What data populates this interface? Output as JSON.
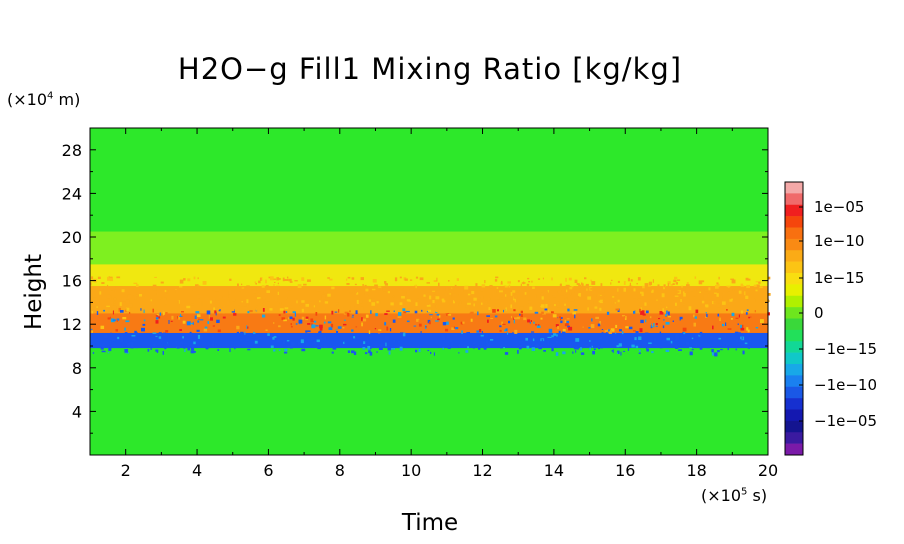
{
  "chart_data": {
    "type": "heatmap",
    "title": "H2O−g Fill1 Mixing Ratio [kg/kg]",
    "xlabel": "Time",
    "ylabel": "Height",
    "x_unit": {
      "prefix": "(×10",
      "exp": "5",
      "suffix": " s)"
    },
    "y_unit": {
      "prefix": "(×10",
      "exp": "4",
      "suffix": " m)"
    },
    "xlim": [
      1,
      20
    ],
    "ylim": [
      0,
      30
    ],
    "x_ticks": [
      2,
      4,
      6,
      8,
      10,
      12,
      14,
      16,
      18,
      20
    ],
    "y_ticks": [
      4,
      8,
      12,
      16,
      20,
      24,
      28
    ],
    "colorbar": {
      "labels": [
        "1e−05",
        "1e−10",
        "1e−15",
        "0",
        "−1e−15",
        "−1e−10",
        "−1e−05"
      ],
      "colors": [
        "#f4a9a8",
        "#f06a6a",
        "#f01f1f",
        "#f5460c",
        "#f87010",
        "#f98a14",
        "#fbab16",
        "#fcc414",
        "#f9de10",
        "#e8f000",
        "#b0f000",
        "#6ee61e",
        "#3ad83a",
        "#22e05a",
        "#12d896",
        "#10c8c8",
        "#18a8e8",
        "#1a80f0",
        "#1a58e6",
        "#1630d0",
        "#1418b0",
        "#141490",
        "#3a1aa0",
        "#7a1aa8"
      ]
    },
    "bands": [
      {
        "from": 0,
        "to": 9.8,
        "value": "0",
        "color": "#2ee82a"
      },
      {
        "from": 9.8,
        "to": 11.2,
        "value": "−1e−10",
        "color": "#1a58f0"
      },
      {
        "from": 11.2,
        "to": 13.0,
        "value": "1e−10",
        "color": "#f87a14"
      },
      {
        "from": 13.0,
        "to": 15.5,
        "value": "1e−12",
        "color": "#fba818"
      },
      {
        "from": 15.5,
        "to": 17.5,
        "value": "1e−14",
        "color": "#f0e810"
      },
      {
        "from": 17.5,
        "to": 20.5,
        "value": "1e−15",
        "color": "#7ef020"
      },
      {
        "from": 20.5,
        "to": 30,
        "value": "0",
        "color": "#2ee82a"
      }
    ]
  }
}
